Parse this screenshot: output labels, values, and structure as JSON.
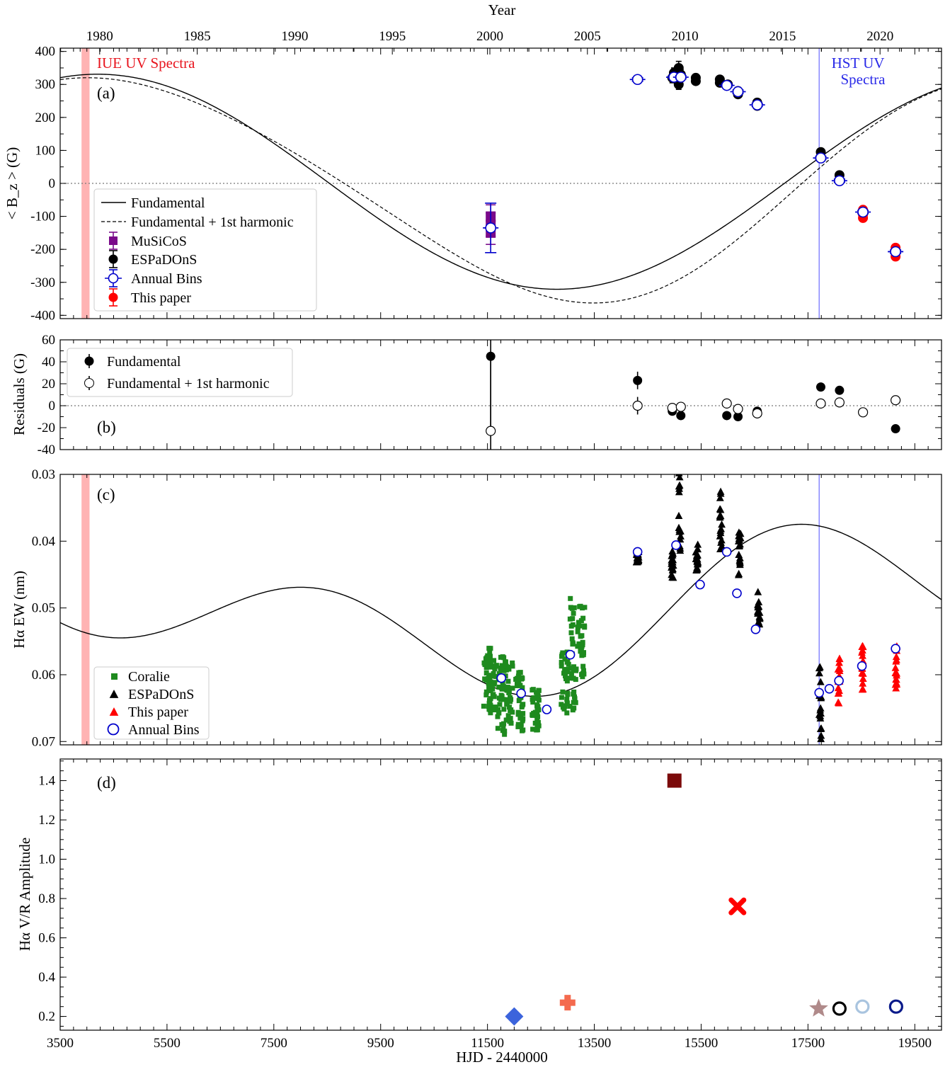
{
  "top_axis": {
    "label": "Year",
    "ticks": [
      "1980",
      "1985",
      "1990",
      "1995",
      "2000",
      "2005",
      "2010",
      "2015",
      "2020"
    ]
  },
  "bottom_axis": {
    "label": "HJD - 2440000",
    "ticks": [
      "3500",
      "5500",
      "7500",
      "9500",
      "11500",
      "13500",
      "15500",
      "17500",
      "19500"
    ]
  },
  "colors": {
    "coralie": "#1e8a1e",
    "espadons": "#000000",
    "this_paper": "#ff0000",
    "annual_bins": "#0000cc",
    "musicos": "#7a0a8a",
    "iue_band": "#ffb3b3",
    "hst_line": "#8080ff"
  },
  "chart_data": [
    {
      "type": "scatter",
      "panel_label": "(a)",
      "ylabel": "< B_z > (G)",
      "ylim": [
        -410,
        410
      ],
      "yticks": [
        "400",
        "300",
        "200",
        "100",
        "0",
        "-100",
        "-200",
        "-300",
        "-400"
      ],
      "annotations": {
        "iue": "IUE UV Spectra",
        "hst_line1": "HST UV",
        "hst_line2": "Spectra"
      },
      "legend": [
        "Fundamental",
        "Fundamental + 1st harmonic",
        "MuSiCoS",
        "ESPaDOnS",
        "Annual Bins",
        "This paper"
      ],
      "series": [
        {
          "name": "MuSiCoS",
          "x": [
            11560,
            11560,
            11560
          ],
          "y": [
            -100,
            -125,
            -150
          ],
          "err": [
            35,
            35,
            35
          ]
        },
        {
          "name": "ESPaDOnS",
          "x": [
            14960,
            14990,
            15080,
            15080,
            15120,
            15400,
            15400,
            15850,
            15850,
            16000,
            16190,
            16190,
            16550,
            16550,
            17740,
            17740,
            18090,
            18090
          ],
          "y": [
            320,
            335,
            350,
            300,
            330,
            310,
            320,
            305,
            315,
            300,
            280,
            270,
            245,
            235,
            95,
            80,
            25,
            10
          ],
          "err": [
            15,
            15,
            20,
            15,
            15,
            10,
            10,
            10,
            10,
            10,
            10,
            10,
            10,
            10,
            10,
            10,
            10,
            10
          ]
        },
        {
          "name": "Annual Bins",
          "x": [
            11560,
            14310,
            14990,
            15120,
            15980,
            16190,
            16550,
            17740,
            18090,
            18530,
            19140
          ],
          "y": [
            -135,
            315,
            322,
            322,
            297,
            278,
            238,
            77,
            8,
            -87,
            -207
          ],
          "err": [
            75,
            5,
            5,
            5,
            5,
            5,
            5,
            5,
            5,
            5,
            5
          ]
        },
        {
          "name": "This paper",
          "x": [
            18530,
            18530,
            18530,
            19140,
            19140,
            19140
          ],
          "y": [
            -80,
            -95,
            -105,
            -195,
            -210,
            -222
          ],
          "err": [
            5,
            5,
            5,
            5,
            5,
            5
          ]
        }
      ],
      "models": {
        "Fundamental": {
          "P": 17200,
          "mean": 5,
          "amp": 326,
          "t_max": 4200
        },
        "Fundamental + 1st harmonic": {
          "P": 17200,
          "mean": -10,
          "c1": 337,
          "t1": 4500,
          "c2": 30,
          "t2": 1800
        }
      }
    },
    {
      "type": "scatter",
      "panel_label": "(b)",
      "ylabel": "Residuals (G)",
      "ylim": [
        -40,
        60
      ],
      "yticks": [
        "60",
        "40",
        "20",
        "0",
        "-20",
        "-40"
      ],
      "legend": [
        "Fundamental",
        "Fundamental + 1st harmonic"
      ],
      "series": [
        {
          "name": "Fundamental",
          "x": [
            11560,
            14310,
            14960,
            15120,
            15980,
            16190,
            16550,
            17740,
            18090,
            18530,
            19140
          ],
          "y": [
            45,
            23,
            -5,
            -9,
            -9,
            -10,
            -5,
            17,
            14,
            -6,
            -21
          ],
          "err": [
            70,
            8,
            3,
            3,
            3,
            3,
            3,
            3,
            3,
            3,
            3
          ]
        },
        {
          "name": "Fundamental + 1st harmonic",
          "x": [
            11560,
            14310,
            14960,
            15120,
            15980,
            16190,
            16550,
            17740,
            18090,
            18530,
            19140
          ],
          "y": [
            -23,
            0,
            -2,
            -1,
            2,
            -3,
            -7,
            2,
            3,
            -6,
            5
          ],
          "err": [
            70,
            8,
            3,
            3,
            3,
            3,
            3,
            3,
            3,
            3,
            3
          ]
        }
      ]
    },
    {
      "type": "scatter",
      "panel_label": "(c)",
      "ylabel": "Hα  EW (nm)",
      "ylim": [
        0.0705,
        0.03
      ],
      "yticks": [
        "0.03",
        "0.04",
        "0.05",
        "0.06",
        "0.07"
      ],
      "legend": [
        "Coralie",
        "ESPaDOnS",
        "This paper",
        "Annual Bins"
      ],
      "series": [
        {
          "name": "Coralie",
          "x": [
            11500,
            11600,
            11750,
            11900,
            12100,
            12400,
            12950,
            13100,
            13250
          ],
          "y_ranges": [
            [
              0.0555,
              0.0655
            ],
            [
              0.0565,
              0.066
            ],
            [
              0.057,
              0.069
            ],
            [
              0.058,
              0.0675
            ],
            [
              0.0595,
              0.0685
            ],
            [
              0.062,
              0.0685
            ],
            [
              0.0565,
              0.066
            ],
            [
              0.0475,
              0.068
            ],
            [
              0.0495,
              0.0605
            ]
          ]
        },
        {
          "name": "ESPaDOnS",
          "x": [
            14310,
            14960,
            15100,
            15420,
            15870,
            16220,
            16580,
            17730
          ],
          "y_ranges": [
            [
              0.0415,
              0.0435
            ],
            [
              0.0415,
              0.0455
            ],
            [
              0.0285,
              0.0435
            ],
            [
              0.0405,
              0.0445
            ],
            [
              0.0325,
              0.0415
            ],
            [
              0.0385,
              0.0455
            ],
            [
              0.0475,
              0.0535
            ],
            [
              0.0585,
              0.0715
            ]
          ]
        },
        {
          "name": "This paper",
          "x": [
            18080,
            18520,
            19150
          ],
          "y_ranges": [
            [
              0.0575,
              0.0655
            ],
            [
              0.0555,
              0.0625
            ],
            [
              0.0555,
              0.0625
            ]
          ]
        },
        {
          "name": "Annual Bins",
          "x": [
            11760,
            12130,
            12610,
            13050,
            14310,
            15030,
            15480,
            15980,
            16170,
            16520,
            17710,
            17900,
            18080,
            18510,
            19140
          ],
          "y": [
            0.0605,
            0.0628,
            0.0652,
            0.057,
            0.0416,
            0.0406,
            0.0465,
            0.0416,
            0.0478,
            0.0532,
            0.0627,
            0.0621,
            0.0609,
            0.0587,
            0.0561
          ]
        }
      ],
      "model": {
        "mean": 0.0505,
        "c1": 0.0065,
        "t1": 10500,
        "c2": 0.008,
        "t2": 4150,
        "P": 17200
      }
    },
    {
      "type": "scatter",
      "panel_label": "(d)",
      "ylabel": "Hα V/R Amplitude",
      "ylim": [
        0.13,
        1.51
      ],
      "yticks": [
        "0.2",
        "0.4",
        "0.6",
        "0.8",
        "1.0",
        "1.2",
        "1.4"
      ],
      "points": [
        {
          "x": 12000,
          "y": 0.2,
          "marker": "diamond",
          "color": "#3c64dc"
        },
        {
          "x": 13000,
          "y": 0.27,
          "marker": "plus",
          "color": "#f46a4e"
        },
        {
          "x": 15000,
          "y": 1.4,
          "marker": "square",
          "color": "#7b0a0a"
        },
        {
          "x": 16180,
          "y": 0.76,
          "marker": "x",
          "color": "#ff0000"
        },
        {
          "x": 17700,
          "y": 0.24,
          "marker": "star",
          "color": "#b08a8a"
        },
        {
          "x": 18090,
          "y": 0.24,
          "marker": "ring",
          "color": "#000000"
        },
        {
          "x": 18520,
          "y": 0.25,
          "marker": "ring",
          "color": "#a9c4df"
        },
        {
          "x": 19150,
          "y": 0.25,
          "marker": "ring",
          "color": "#0a1a8a"
        }
      ]
    }
  ]
}
